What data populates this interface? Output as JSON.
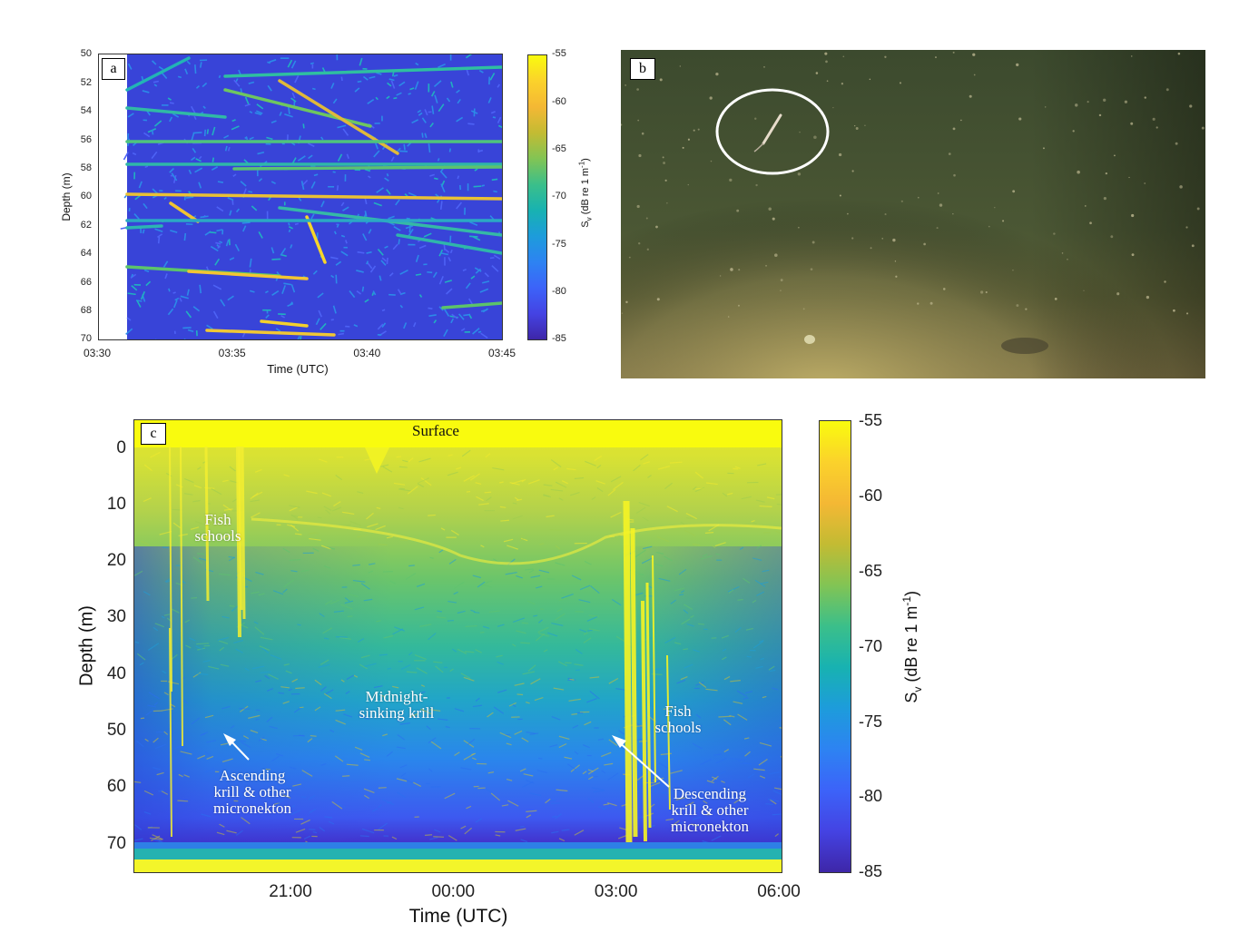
{
  "chart_data": [
    {
      "panel": "a",
      "type": "heatmap",
      "xlabel": "Time (UTC)",
      "ylabel": "Depth (m)",
      "x_ticks": [
        "03:30",
        "03:35",
        "03:40",
        "03:45"
      ],
      "y_ticks": [
        "50",
        "52",
        "54",
        "56",
        "58",
        "60",
        "62",
        "64",
        "66",
        "68",
        "70"
      ],
      "ylim": [
        50,
        70
      ],
      "y_reversed": true,
      "colorbar_label": "Sv (dB re 1 m⁻¹)",
      "colorbar_ticks": [
        "-55",
        "-60",
        "-65",
        "-70",
        "-75",
        "-80",
        "-85"
      ],
      "colorbar_range": [
        -85,
        -55
      ],
      "colormap": "parula"
    },
    {
      "panel": "c",
      "type": "heatmap",
      "xlabel": "Time (UTC)",
      "ylabel": "Depth (m)",
      "x_ticks": [
        "21:00",
        "00:00",
        "03:00",
        "06:00"
      ],
      "y_ticks": [
        "0",
        "10",
        "20",
        "30",
        "40",
        "50",
        "60",
        "70"
      ],
      "y_reversed": true,
      "colorbar_label": "Sv (dB re 1 m⁻¹)",
      "colorbar_ticks": [
        "-55",
        "-60",
        "-65",
        "-70",
        "-75",
        "-80",
        "-85"
      ],
      "colorbar_range": [
        -85,
        -55
      ],
      "colormap": "parula",
      "annotations": [
        "Surface",
        "Fish schools",
        "Midnight-sinking krill",
        "Fish schools",
        "Ascending krill & other micronekton",
        "Descending krill & other micronekton"
      ]
    }
  ],
  "panels": {
    "a": {
      "letter": "a",
      "xlabel": "Time (UTC)",
      "ylabel": "Depth (m)",
      "x_ticks": [
        "03:30",
        "03:35",
        "03:40",
        "03:45"
      ],
      "y_ticks": [
        "50",
        "52",
        "54",
        "56",
        "58",
        "60",
        "62",
        "64",
        "66",
        "68",
        "70"
      ],
      "cbar_ticks": [
        "-55",
        "-60",
        "-65",
        "-70",
        "-75",
        "-80",
        "-85"
      ],
      "cbar_label_main": "S",
      "cbar_label_sub": "v",
      "cbar_label_rest": " (dB re 1 m",
      "cbar_label_sup": "-1",
      "cbar_label_end": ")"
    },
    "b": {
      "letter": "b"
    },
    "c": {
      "letter": "c",
      "xlabel": "Time (UTC)",
      "ylabel": "Depth (m)",
      "x_ticks": [
        "21:00",
        "00:00",
        "03:00",
        "06:00"
      ],
      "y_ticks": [
        "0",
        "10",
        "20",
        "30",
        "40",
        "50",
        "60",
        "70"
      ],
      "cbar_ticks": [
        "-55",
        "-60",
        "-65",
        "-70",
        "-75",
        "-80",
        "-85"
      ],
      "cbar_label_main": "S",
      "cbar_label_sub": "v",
      "cbar_label_rest": " (dB re 1 m",
      "cbar_label_sup": "-1",
      "cbar_label_end": ")",
      "surface_label": "Surface",
      "fish_schools_left": [
        "Fish",
        "schools"
      ],
      "midnight_krill": [
        "Midnight-",
        "sinking krill"
      ],
      "fish_schools_right": [
        "Fish",
        "schools"
      ],
      "ascending": [
        "Ascending",
        "krill & other",
        "micronekton"
      ],
      "descending": [
        "Descending",
        "krill & other",
        "micronekton"
      ]
    }
  },
  "colors": {
    "parula": [
      "#3e26a8",
      "#4443e3",
      "#3c63f9",
      "#2d83f2",
      "#1d9cdb",
      "#18b2b1",
      "#3bbf8a",
      "#82c454",
      "#c3bb33",
      "#f4b834",
      "#fbd22b",
      "#f9fb0e"
    ],
    "photo_water": "#3d4a2c",
    "photo_floor": "#8a8050",
    "ellipse": "#ffffff"
  }
}
